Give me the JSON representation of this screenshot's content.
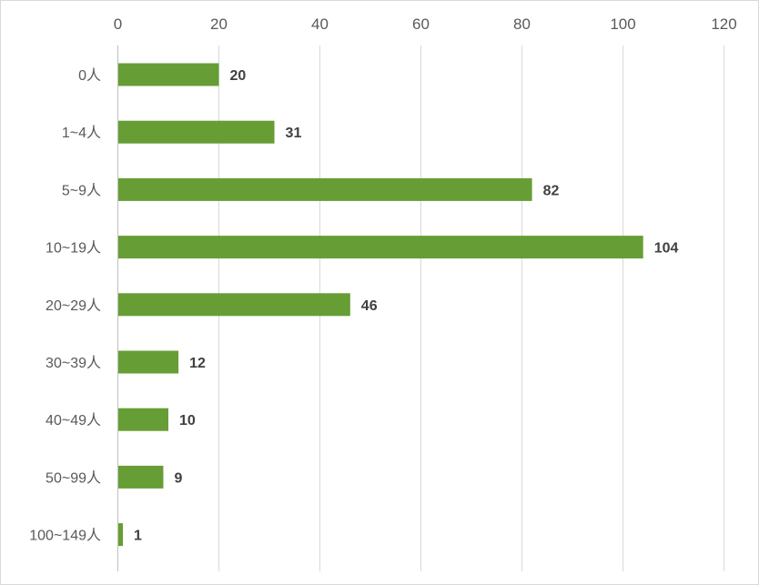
{
  "chart_data": {
    "type": "bar",
    "orientation": "horizontal",
    "categories": [
      "0人",
      "1~4人",
      "5~9人",
      "10~19人",
      "20~29人",
      "30~39人",
      "40~49人",
      "50~99人",
      "100~149人"
    ],
    "values": [
      20,
      31,
      82,
      104,
      46,
      12,
      10,
      9,
      1
    ],
    "title": "",
    "xlabel": "",
    "ylabel": "",
    "xlim": [
      0,
      120
    ],
    "x_ticks": [
      0,
      20,
      40,
      60,
      80,
      100,
      120
    ],
    "x_axis_position": "top",
    "grid": true,
    "legend": "none",
    "data_labels": true,
    "colors": {
      "bar": "#669d34",
      "grid": "#d9d9d9"
    }
  }
}
